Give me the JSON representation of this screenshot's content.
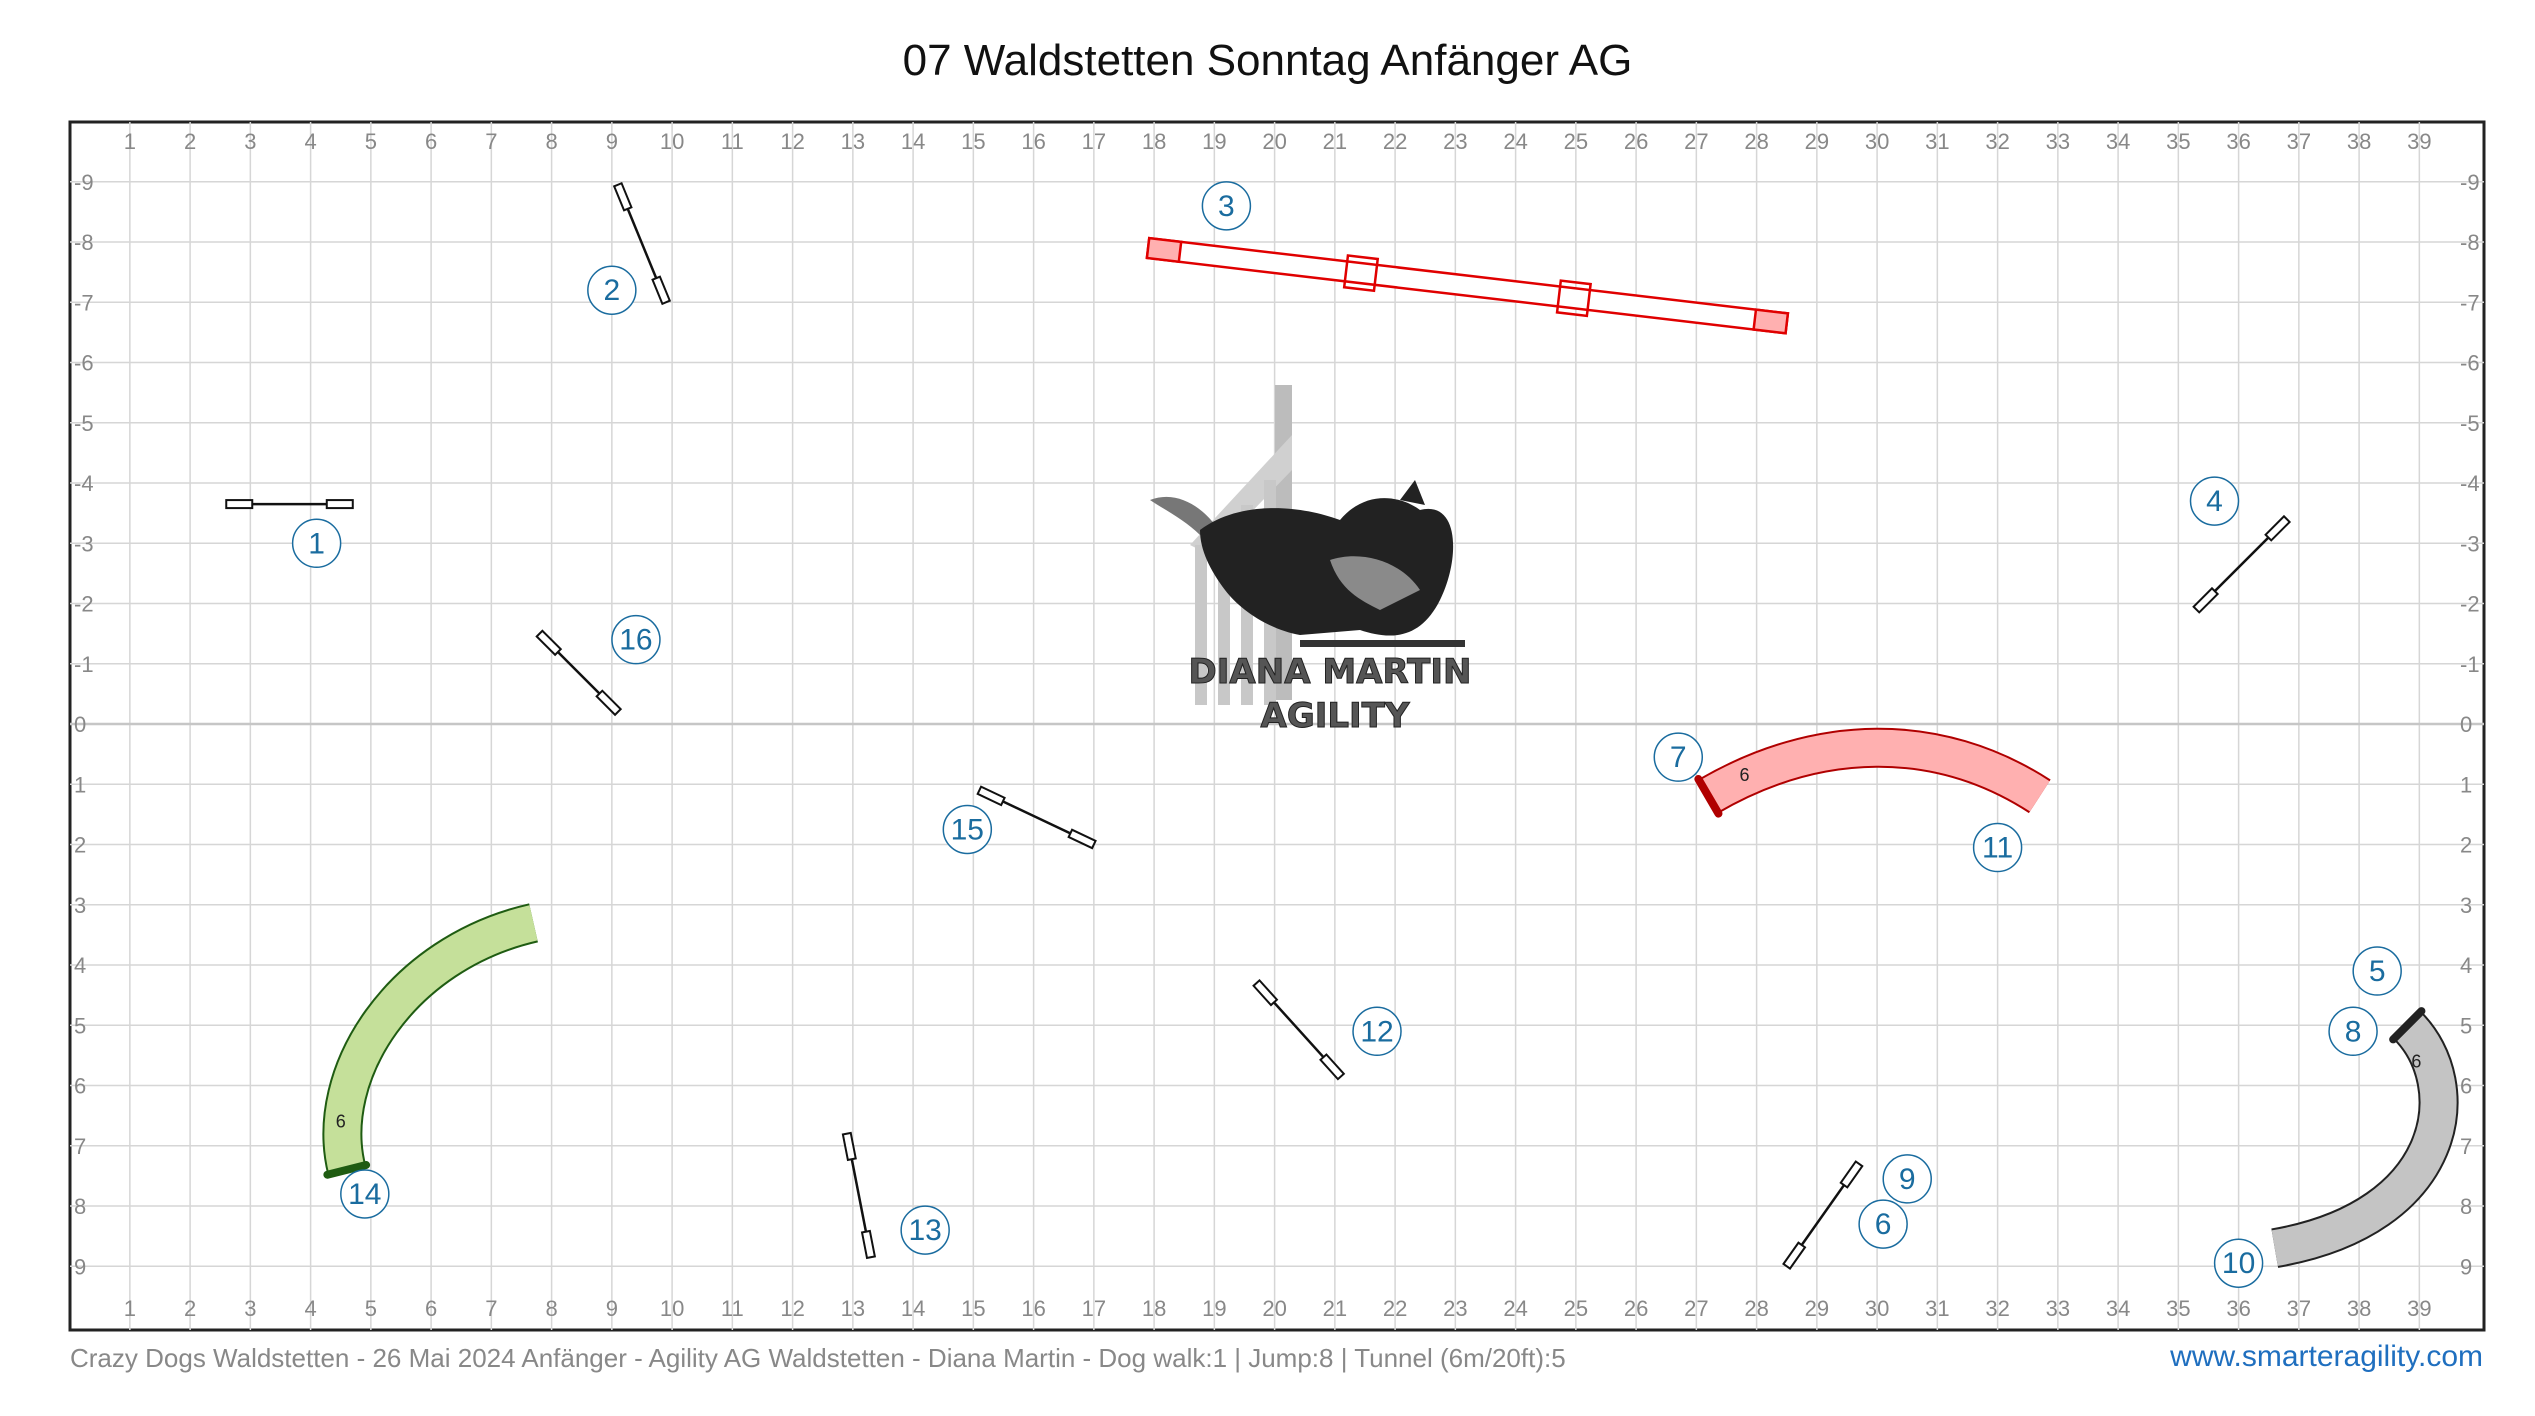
{
  "title": "07 Waldstetten Sonntag Anfänger AG",
  "footer": {
    "info": "Crazy Dogs Waldstetten - 26 Mai 2024 Anfänger - Agility AG Waldstetten - Diana Martin - Dog walk:1 | Jump:8 | Tunnel (6m/20ft):5",
    "website": "www.smarteragility.com"
  },
  "logo": {
    "line1": "DIANA MARTIN",
    "line2": "AGILITY"
  },
  "grid": {
    "x_labels": [
      "1",
      "2",
      "3",
      "4",
      "5",
      "6",
      "7",
      "8",
      "9",
      "10",
      "11",
      "12",
      "13",
      "14",
      "15",
      "16",
      "17",
      "18",
      "19",
      "20",
      "21",
      "22",
      "23",
      "24",
      "25",
      "26",
      "27",
      "28",
      "29",
      "30",
      "31",
      "32",
      "33",
      "34",
      "35",
      "36",
      "37",
      "38",
      "39"
    ],
    "y_labels": [
      "-9",
      "-8",
      "-7",
      "-6",
      "-5",
      "-4",
      "-3",
      "-2",
      "-1",
      "0",
      "1",
      "2",
      "3",
      "4",
      "5",
      "6",
      "7",
      "8",
      "9"
    ]
  },
  "colors": {
    "number": "#1a6c9f",
    "dogwalk": "#e00000",
    "tunnel_red": "#ffb0b0",
    "tunnel_green": "#c5e09a",
    "tunnel_grey": "#c4c4c4"
  },
  "obstacles": {
    "jumps": [
      {
        "id": "1",
        "x1": 2.6,
        "y1": -3.65,
        "x2": 4.7,
        "y2": -3.65
      },
      {
        "id": "2",
        "x1": 9.1,
        "y1": -8.95,
        "x2": 9.9,
        "y2": -7.0
      },
      {
        "id": "4",
        "x1": 35.3,
        "y1": -1.9,
        "x2": 36.8,
        "y2": -3.4
      },
      {
        "id": "16",
        "x1": 7.8,
        "y1": -1.5,
        "x2": 9.1,
        "y2": -0.2
      },
      {
        "id": "15",
        "x1": 15.1,
        "y1": 1.1,
        "x2": 17.0,
        "y2": 2.0
      },
      {
        "id": "12",
        "x1": 19.7,
        "y1": 4.3,
        "x2": 21.1,
        "y2": 5.85
      },
      {
        "id": "13",
        "x1": 12.9,
        "y1": 6.8,
        "x2": 13.3,
        "y2": 8.85
      },
      {
        "id": "9",
        "x1": 28.5,
        "y1": 9.0,
        "x2": 29.7,
        "y2": 7.3
      }
    ],
    "dogwalk": {
      "id": "3",
      "x1": 17.9,
      "y1": -7.9,
      "x2": 28.5,
      "y2": -6.65
    },
    "tunnels": [
      {
        "id": "tunnel-red",
        "length": "6",
        "color": "#ffb0b0",
        "stroke": "#b00000",
        "points": [
          [
            27.2,
            1.2
          ],
          [
            29.0,
            0.15
          ],
          [
            31.0,
            0.1
          ],
          [
            32.7,
            1.2
          ]
        ],
        "label_at": [
          27.8,
          0.95
        ]
      },
      {
        "id": "tunnel-green",
        "length": "6",
        "color": "#c5e09a",
        "stroke": "#1f5c12",
        "points": [
          [
            4.6,
            7.4
          ],
          [
            4.2,
            5.8
          ],
          [
            5.5,
            3.8
          ],
          [
            7.7,
            3.3
          ]
        ],
        "label_at": [
          4.5,
          6.7
        ]
      },
      {
        "id": "tunnel-grey",
        "length": "6",
        "color": "#c4c4c4",
        "stroke": "#222222",
        "points": [
          [
            38.8,
            5.0
          ],
          [
            39.8,
            6.0
          ],
          [
            39.5,
            8.2
          ],
          [
            36.6,
            8.7
          ]
        ],
        "label_at": [
          38.95,
          5.7
        ]
      }
    ],
    "numbers": [
      {
        "label": "1",
        "x": 4.1,
        "y": -3.0
      },
      {
        "label": "2",
        "x": 9.0,
        "y": -7.2
      },
      {
        "label": "3",
        "x": 19.2,
        "y": -8.6
      },
      {
        "label": "4",
        "x": 35.6,
        "y": -3.7
      },
      {
        "label": "16",
        "x": 9.4,
        "y": -1.4
      },
      {
        "label": "7",
        "x": 26.7,
        "y": 0.55
      },
      {
        "label": "15",
        "x": 14.9,
        "y": 1.75
      },
      {
        "label": "11",
        "x": 32.0,
        "y": 2.05
      },
      {
        "label": "5",
        "x": 38.3,
        "y": 4.1
      },
      {
        "label": "8",
        "x": 37.9,
        "y": 5.1
      },
      {
        "label": "12",
        "x": 21.7,
        "y": 5.1
      },
      {
        "label": "14",
        "x": 4.9,
        "y": 7.8
      },
      {
        "label": "9",
        "x": 30.5,
        "y": 7.55
      },
      {
        "label": "6",
        "x": 30.1,
        "y": 8.3
      },
      {
        "label": "13",
        "x": 14.2,
        "y": 8.4
      },
      {
        "label": "10",
        "x": 36.0,
        "y": 8.95
      }
    ]
  }
}
